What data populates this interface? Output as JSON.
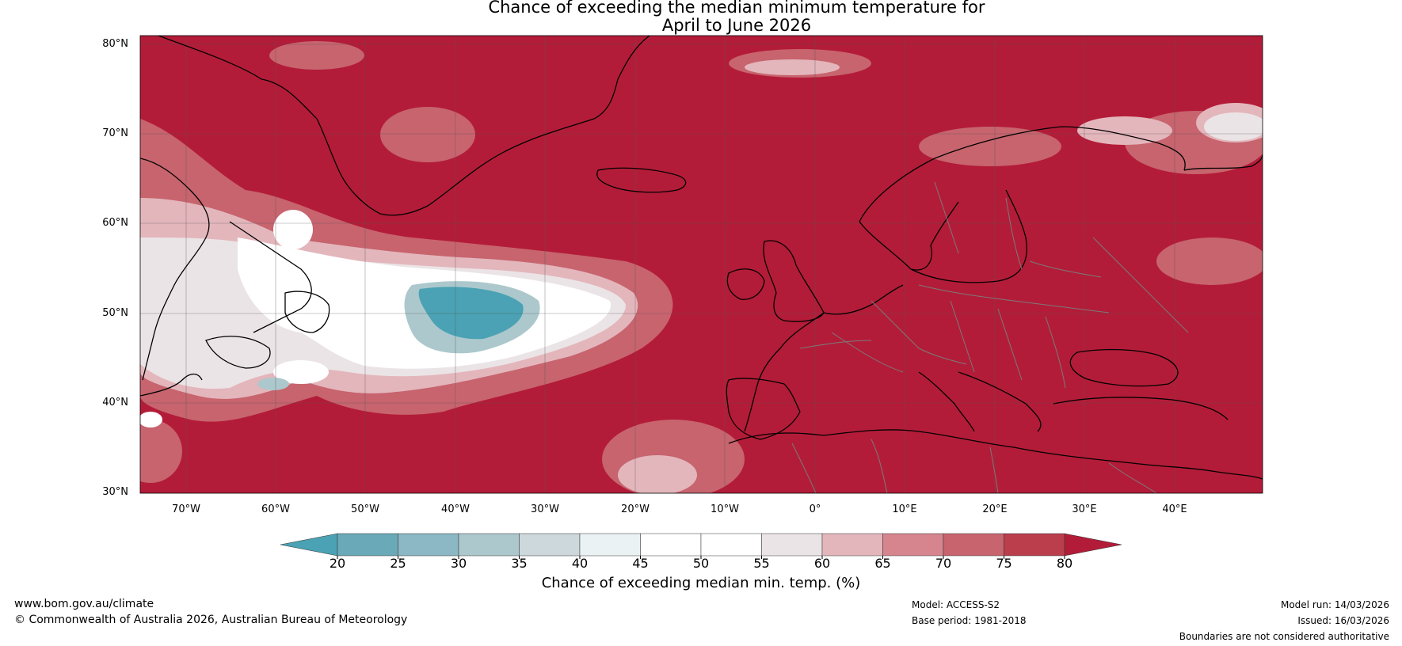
{
  "title_line1": "Chance of exceeding the median minimum temperature for",
  "title_line2": "April to June 2026",
  "latitude_labels": [
    "80°N",
    "70°N",
    "60°N",
    "50°N",
    "40°N",
    "30°N"
  ],
  "longitude_labels": [
    "70°W",
    "60°W",
    "50°W",
    "40°W",
    "30°W",
    "20°W",
    "10°W",
    "0°",
    "10°E",
    "20°E",
    "30°E",
    "40°E"
  ],
  "colorbar": {
    "ticks": [
      "20",
      "25",
      "30",
      "35",
      "40",
      "45",
      "50",
      "55",
      "60",
      "65",
      "70",
      "75",
      "80"
    ],
    "colors": [
      "#4aa2b4",
      "#6aaab8",
      "#8bb8c4",
      "#acc8cc",
      "#cdd8dc",
      "#eaf2f4",
      "#ffffff",
      "#ffffff",
      "#ebe4e6",
      "#e3b6bc",
      "#d6848e",
      "#c7646e",
      "#bb3e4c",
      "#b31c38"
    ],
    "label": "Chance of exceeding median min. temp. (%)"
  },
  "colors": {
    "base_red": "#b31c38",
    "coast": "#000000",
    "border": "#7a7a7a",
    "grid": "#555555"
  },
  "footer": {
    "website": "www.bom.gov.au/climate",
    "copyright": "© Commonwealth of Australia 2026, Australian Bureau of Meteorology",
    "model": "Model: ACCESS-S2",
    "base_period": "Base period: 1981-2018",
    "model_run": "Model run: 14/03/2026",
    "issued": "Issued: 16/03/2026",
    "disclaimer": "Boundaries are not considered authoritative"
  }
}
